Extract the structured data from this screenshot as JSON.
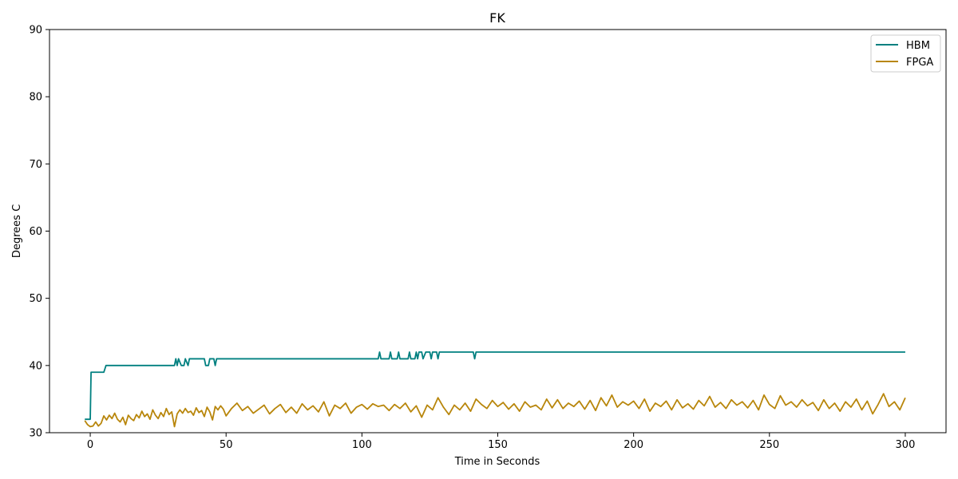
{
  "chart_data": {
    "type": "line",
    "title": "FK",
    "xlabel": "Time in Seconds",
    "ylabel": "Degrees C",
    "xlim": [
      -15,
      315
    ],
    "ylim": [
      30,
      90
    ],
    "xticks": [
      0,
      50,
      100,
      150,
      200,
      250,
      300
    ],
    "yticks": [
      30,
      40,
      50,
      60,
      70,
      80,
      90
    ],
    "grid": false,
    "legend_position": "top-right",
    "series": [
      {
        "name": "HBM",
        "color": "#008080",
        "points": [
          [
            -2,
            32
          ],
          [
            0,
            32
          ],
          [
            0.3,
            39
          ],
          [
            5,
            39
          ],
          [
            5.8,
            40
          ],
          [
            31,
            40
          ],
          [
            31.5,
            41
          ],
          [
            32,
            40
          ],
          [
            32.5,
            41
          ],
          [
            33.5,
            40
          ],
          [
            34.5,
            40
          ],
          [
            35,
            41
          ],
          [
            36,
            40
          ],
          [
            36.5,
            41
          ],
          [
            42,
            41
          ],
          [
            42.5,
            40
          ],
          [
            43.5,
            40
          ],
          [
            44,
            41
          ],
          [
            45.5,
            41
          ],
          [
            46,
            40
          ],
          [
            46.5,
            41
          ],
          [
            106,
            41
          ],
          [
            106.5,
            42
          ],
          [
            107,
            41
          ],
          [
            110,
            41
          ],
          [
            110.5,
            42
          ],
          [
            111,
            41
          ],
          [
            113,
            41
          ],
          [
            113.5,
            42
          ],
          [
            114,
            41
          ],
          [
            117,
            41
          ],
          [
            117.5,
            42
          ],
          [
            118,
            41
          ],
          [
            119.5,
            41
          ],
          [
            120,
            42
          ],
          [
            120.5,
            41
          ],
          [
            121,
            42
          ],
          [
            122,
            42
          ],
          [
            122.5,
            41
          ],
          [
            123.5,
            42
          ],
          [
            125,
            42
          ],
          [
            125.5,
            41
          ],
          [
            126,
            42
          ],
          [
            127.5,
            42
          ],
          [
            128,
            41
          ],
          [
            128.5,
            42
          ],
          [
            141,
            42
          ],
          [
            141.5,
            41
          ],
          [
            142,
            42
          ],
          [
            300,
            42
          ]
        ]
      },
      {
        "name": "FPGA",
        "color": "#b8860b",
        "points": [
          [
            -2,
            31.8
          ],
          [
            -1,
            31.2
          ],
          [
            0,
            30.9
          ],
          [
            1,
            31.0
          ],
          [
            2,
            31.6
          ],
          [
            3,
            31.0
          ],
          [
            4,
            31.4
          ],
          [
            5,
            32.5
          ],
          [
            6,
            31.9
          ],
          [
            7,
            32.6
          ],
          [
            8,
            32.1
          ],
          [
            9,
            32.9
          ],
          [
            10,
            32.0
          ],
          [
            11,
            31.6
          ],
          [
            12,
            32.3
          ],
          [
            13,
            31.2
          ],
          [
            14,
            32.6
          ],
          [
            15,
            32.1
          ],
          [
            16,
            31.8
          ],
          [
            17,
            32.7
          ],
          [
            18,
            32.2
          ],
          [
            19,
            33.2
          ],
          [
            20,
            32.4
          ],
          [
            21,
            32.8
          ],
          [
            22,
            32.0
          ],
          [
            23,
            33.4
          ],
          [
            24,
            32.6
          ],
          [
            25,
            32.1
          ],
          [
            26,
            33.0
          ],
          [
            27,
            32.4
          ],
          [
            28,
            33.6
          ],
          [
            29,
            32.7
          ],
          [
            30,
            33.1
          ],
          [
            31,
            30.9
          ],
          [
            32,
            32.8
          ],
          [
            33,
            33.4
          ],
          [
            34,
            32.9
          ],
          [
            35,
            33.6
          ],
          [
            36,
            33.0
          ],
          [
            37,
            33.2
          ],
          [
            38,
            32.6
          ],
          [
            39,
            33.7
          ],
          [
            40,
            33.0
          ],
          [
            41,
            33.3
          ],
          [
            42,
            32.4
          ],
          [
            43,
            33.8
          ],
          [
            44,
            33.1
          ],
          [
            45,
            31.9
          ],
          [
            46,
            33.9
          ],
          [
            47,
            33.4
          ],
          [
            48,
            34.0
          ],
          [
            49,
            33.5
          ],
          [
            50,
            32.5
          ],
          [
            52,
            33.6
          ],
          [
            54,
            34.4
          ],
          [
            56,
            33.3
          ],
          [
            58,
            33.9
          ],
          [
            60,
            32.9
          ],
          [
            62,
            33.5
          ],
          [
            64,
            34.1
          ],
          [
            66,
            32.8
          ],
          [
            68,
            33.6
          ],
          [
            70,
            34.2
          ],
          [
            72,
            33.0
          ],
          [
            74,
            33.8
          ],
          [
            76,
            32.9
          ],
          [
            78,
            34.3
          ],
          [
            80,
            33.4
          ],
          [
            82,
            34.0
          ],
          [
            84,
            33.1
          ],
          [
            86,
            34.6
          ],
          [
            88,
            32.5
          ],
          [
            90,
            34.1
          ],
          [
            92,
            33.6
          ],
          [
            94,
            34.4
          ],
          [
            96,
            32.9
          ],
          [
            98,
            33.8
          ],
          [
            100,
            34.2
          ],
          [
            102,
            33.5
          ],
          [
            104,
            34.3
          ],
          [
            106,
            33.9
          ],
          [
            108,
            34.1
          ],
          [
            110,
            33.3
          ],
          [
            112,
            34.2
          ],
          [
            114,
            33.6
          ],
          [
            116,
            34.4
          ],
          [
            118,
            33.1
          ],
          [
            120,
            34.0
          ],
          [
            122,
            32.3
          ],
          [
            124,
            34.1
          ],
          [
            126,
            33.4
          ],
          [
            128,
            35.2
          ],
          [
            130,
            33.8
          ],
          [
            132,
            32.7
          ],
          [
            134,
            34.1
          ],
          [
            136,
            33.4
          ],
          [
            138,
            34.4
          ],
          [
            140,
            33.2
          ],
          [
            142,
            35.0
          ],
          [
            144,
            34.2
          ],
          [
            146,
            33.6
          ],
          [
            148,
            34.8
          ],
          [
            150,
            33.9
          ],
          [
            152,
            34.5
          ],
          [
            154,
            33.5
          ],
          [
            156,
            34.3
          ],
          [
            158,
            33.2
          ],
          [
            160,
            34.6
          ],
          [
            162,
            33.8
          ],
          [
            164,
            34.1
          ],
          [
            166,
            33.4
          ],
          [
            168,
            35.0
          ],
          [
            170,
            33.7
          ],
          [
            172,
            34.9
          ],
          [
            174,
            33.6
          ],
          [
            176,
            34.4
          ],
          [
            178,
            33.9
          ],
          [
            180,
            34.7
          ],
          [
            182,
            33.5
          ],
          [
            184,
            34.8
          ],
          [
            186,
            33.3
          ],
          [
            188,
            35.2
          ],
          [
            190,
            34.0
          ],
          [
            192,
            35.6
          ],
          [
            194,
            33.8
          ],
          [
            196,
            34.6
          ],
          [
            198,
            34.1
          ],
          [
            200,
            34.7
          ],
          [
            202,
            33.6
          ],
          [
            204,
            35.0
          ],
          [
            206,
            33.2
          ],
          [
            208,
            34.4
          ],
          [
            210,
            33.9
          ],
          [
            212,
            34.7
          ],
          [
            214,
            33.4
          ],
          [
            216,
            34.9
          ],
          [
            218,
            33.7
          ],
          [
            220,
            34.3
          ],
          [
            222,
            33.5
          ],
          [
            224,
            34.8
          ],
          [
            226,
            34.0
          ],
          [
            228,
            35.4
          ],
          [
            230,
            33.8
          ],
          [
            232,
            34.5
          ],
          [
            234,
            33.6
          ],
          [
            236,
            34.9
          ],
          [
            238,
            34.1
          ],
          [
            240,
            34.6
          ],
          [
            242,
            33.7
          ],
          [
            244,
            34.8
          ],
          [
            246,
            33.4
          ],
          [
            248,
            35.6
          ],
          [
            250,
            34.2
          ],
          [
            252,
            33.6
          ],
          [
            254,
            35.5
          ],
          [
            256,
            34.1
          ],
          [
            258,
            34.6
          ],
          [
            260,
            33.8
          ],
          [
            262,
            34.9
          ],
          [
            264,
            34.0
          ],
          [
            266,
            34.5
          ],
          [
            268,
            33.3
          ],
          [
            270,
            34.9
          ],
          [
            272,
            33.6
          ],
          [
            274,
            34.4
          ],
          [
            276,
            33.2
          ],
          [
            278,
            34.6
          ],
          [
            280,
            33.8
          ],
          [
            282,
            35.0
          ],
          [
            284,
            33.4
          ],
          [
            286,
            34.7
          ],
          [
            288,
            32.8
          ],
          [
            290,
            34.2
          ],
          [
            292,
            35.8
          ],
          [
            294,
            33.9
          ],
          [
            296,
            34.6
          ],
          [
            298,
            33.4
          ],
          [
            300,
            35.2
          ]
        ]
      }
    ]
  }
}
